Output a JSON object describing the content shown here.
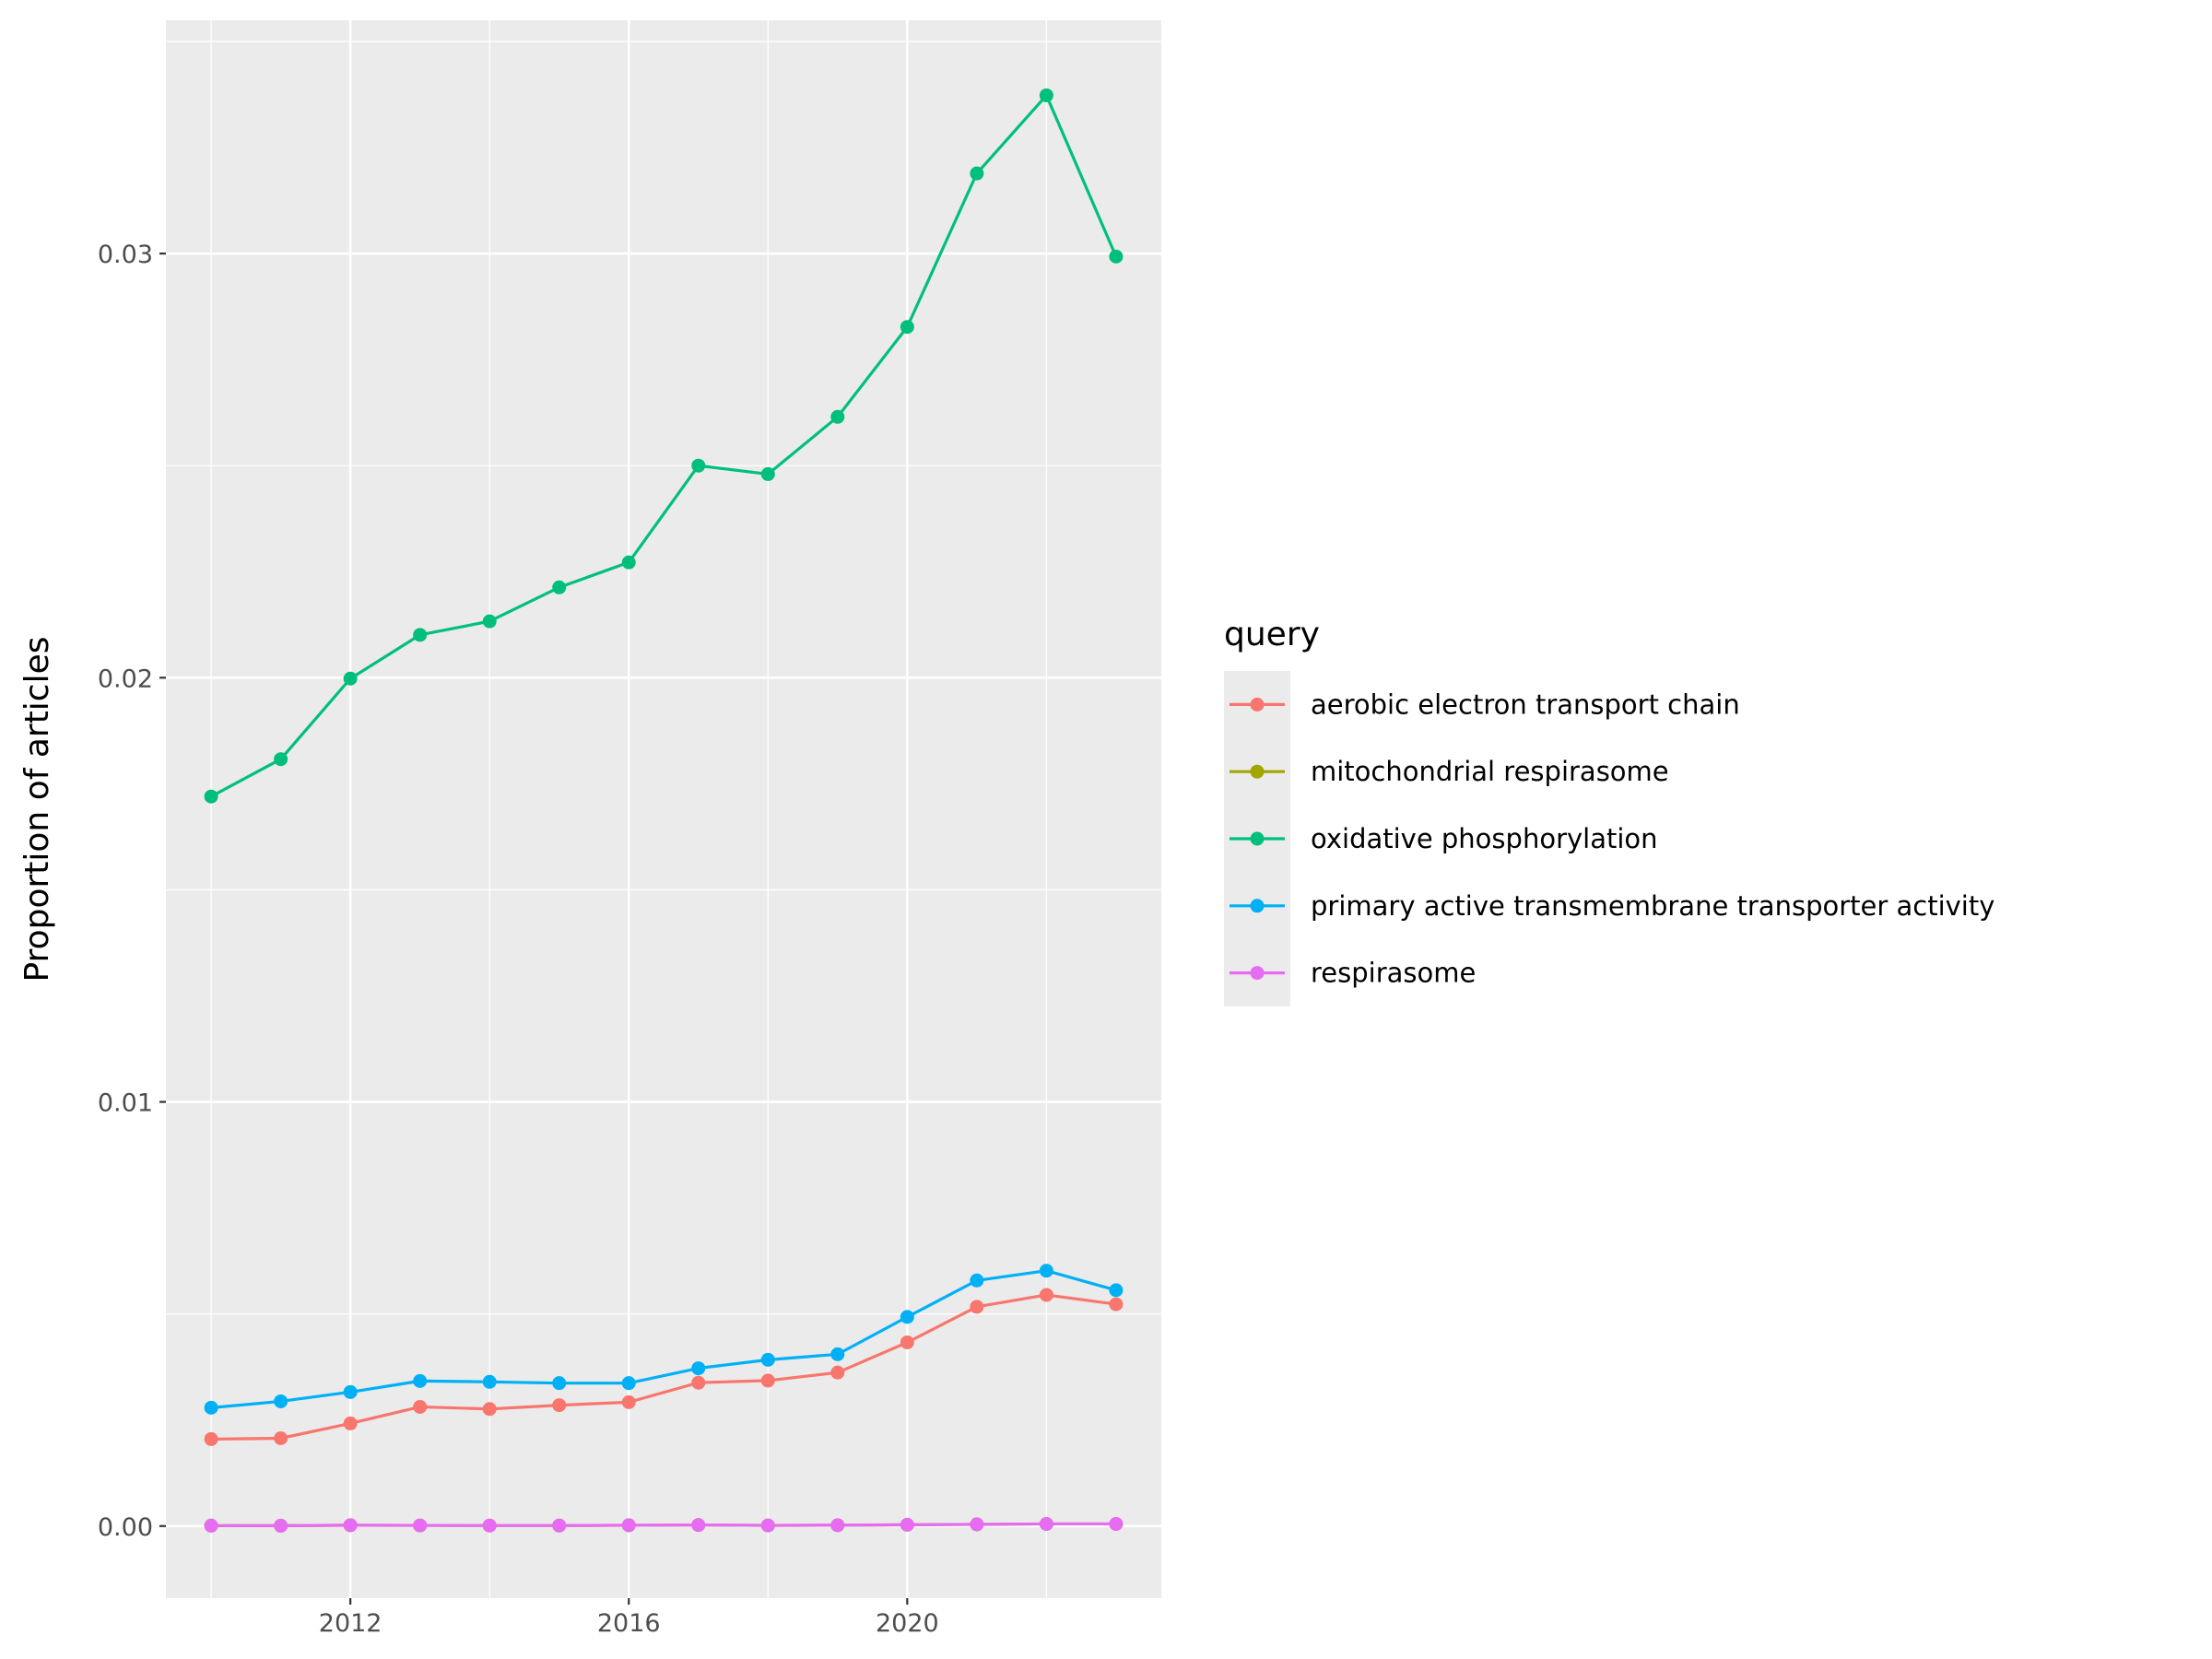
{
  "chart_data": {
    "type": "line",
    "title": "",
    "xlabel": "",
    "ylabel": "Proportion of articles",
    "xlim": [
      2009.35,
      2023.65
    ],
    "ylim": [
      -0.0017,
      0.0355
    ],
    "x_ticks": [
      2012,
      2016,
      2020
    ],
    "x_tick_labels": [
      "2012",
      "2016",
      "2020"
    ],
    "y_ticks": [
      0,
      0.01,
      0.02,
      0.03
    ],
    "y_tick_labels": [
      "0.00",
      "0.01",
      "0.02",
      "0.03"
    ],
    "grid": true,
    "legend": {
      "title": "query",
      "placement": "right"
    },
    "x": [
      2010,
      2011,
      2012,
      2013,
      2014,
      2015,
      2016,
      2017,
      2018,
      2019,
      2020,
      2021,
      2022,
      2023
    ],
    "series": [
      {
        "name": "aerobic electron transport chain",
        "color": "#F8766D",
        "values": [
          0.00205,
          0.00207,
          0.00242,
          0.00281,
          0.00276,
          0.00285,
          0.00292,
          0.00338,
          0.00343,
          0.00362,
          0.00433,
          0.00517,
          0.00545,
          0.00523
        ]
      },
      {
        "name": "mitochondrial respirasome",
        "color": "#A3A500",
        "values": [
          1e-05,
          8e-06,
          2e-05,
          1.5e-05,
          1.2e-05,
          1.2e-05,
          1.8e-05,
          2.5e-05,
          1.5e-05,
          2e-05,
          3e-05,
          4e-05,
          5e-05,
          5e-05
        ]
      },
      {
        "name": "oxidative phosphorylation",
        "color": "#00BF7D",
        "values": [
          0.0172,
          0.01808,
          0.01998,
          0.02101,
          0.02133,
          0.02213,
          0.02272,
          0.025,
          0.0248,
          0.02615,
          0.02827,
          0.03189,
          0.03373,
          0.02993
        ]
      },
      {
        "name": "primary active transmembrane transporter activity",
        "color": "#00B0F6",
        "values": [
          0.00279,
          0.00294,
          0.00316,
          0.00342,
          0.0034,
          0.00337,
          0.00337,
          0.00372,
          0.00392,
          0.00405,
          0.00493,
          0.00579,
          0.00602,
          0.00556
        ]
      },
      {
        "name": "respirasome",
        "color": "#E76BF3",
        "values": [
          1e-05,
          8e-06,
          2e-05,
          1.5e-05,
          1.2e-05,
          1.2e-05,
          1.8e-05,
          2.5e-05,
          1.5e-05,
          2e-05,
          3e-05,
          4e-05,
          5e-05,
          5e-05
        ]
      }
    ]
  }
}
